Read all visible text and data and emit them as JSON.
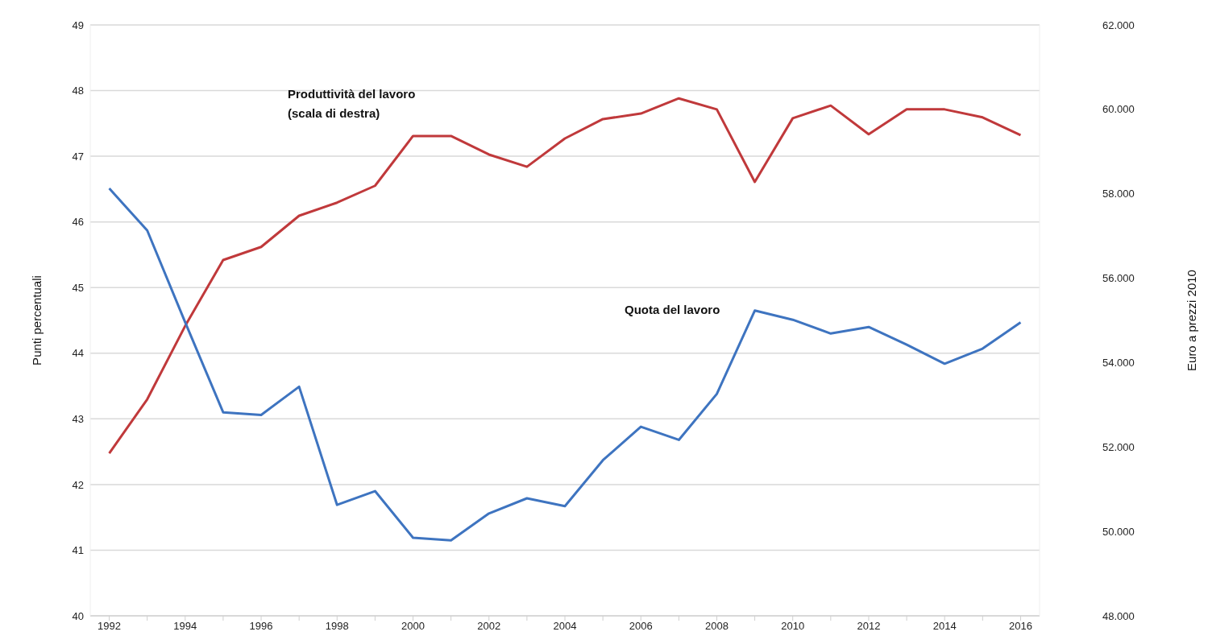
{
  "chart_data": {
    "type": "line",
    "ylabel": "Punti percentuali",
    "y2label": "Euro a prezzi 2010",
    "x": [
      1992,
      1993,
      1994,
      1995,
      1996,
      1997,
      1998,
      1999,
      2000,
      2001,
      2002,
      2003,
      2004,
      2005,
      2006,
      2007,
      2008,
      2009,
      2010,
      2011,
      2012,
      2013,
      2014,
      2015,
      2016
    ],
    "series": [
      {
        "name": "Produttività del lavoro (scala di destra)",
        "color": "#c0393b",
        "axis": "y2",
        "values": [
          51850,
          53130,
          54870,
          56430,
          56740,
          57480,
          57790,
          58190,
          59370,
          59370,
          58930,
          58640,
          59310,
          59770,
          59900,
          60260,
          60000,
          58280,
          59790,
          60090,
          59410,
          60000,
          60000,
          59810,
          59390
        ]
      },
      {
        "name": "Quota del lavoro",
        "color": "#3e74c0",
        "values": [
          46.51,
          45.87,
          44.47,
          43.1,
          43.06,
          43.49,
          41.69,
          41.9,
          41.19,
          41.15,
          41.56,
          41.79,
          41.67,
          42.37,
          42.88,
          42.68,
          43.38,
          44.65,
          44.51,
          44.3,
          44.4,
          44.13,
          43.84,
          44.07,
          44.47
        ]
      }
    ],
    "xlim": [
      1991.5,
      2016.5
    ],
    "xticks": [
      1992,
      {
        "value": 1993,
        "label": null
      },
      1994,
      {
        "value": 1995,
        "label": null
      },
      1996,
      {
        "value": 1997,
        "label": null
      },
      1998,
      {
        "value": 1999,
        "label": null
      },
      2000,
      {
        "value": 2001,
        "label": null
      },
      2002,
      {
        "value": 2003,
        "label": null
      },
      2004,
      {
        "value": 2005,
        "label": null
      },
      2006,
      {
        "value": 2007,
        "label": null
      },
      2008,
      {
        "value": 2009,
        "label": null
      },
      2010,
      {
        "value": 2011,
        "label": null
      },
      2012,
      {
        "value": 2013,
        "label": null
      },
      2014,
      {
        "value": 2015,
        "label": null
      },
      2016
    ],
    "ylim": [
      40,
      49
    ],
    "yticks": [
      40,
      41,
      42,
      43,
      44,
      45,
      46,
      47,
      48,
      49
    ],
    "y2lim": [
      48000,
      62000
    ],
    "y2ticks": [
      {
        "value": 48000,
        "label": "48.000"
      },
      {
        "value": 50000,
        "label": "50.000"
      },
      {
        "value": 52000,
        "label": "52.000"
      },
      {
        "value": 54000,
        "label": "54.000"
      },
      {
        "value": 56000,
        "label": "56.000"
      },
      {
        "value": 58000,
        "label": "58.000"
      },
      {
        "value": 60000,
        "label": "60.000"
      },
      {
        "value": 62000,
        "label": "62.000"
      }
    ],
    "grid": "y",
    "legend": false,
    "marker": "none",
    "line_style": "solid"
  }
}
